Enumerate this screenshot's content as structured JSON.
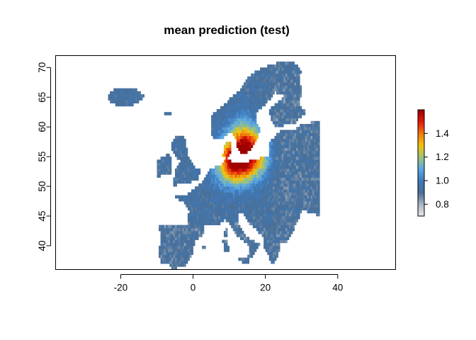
{
  "chart_data": {
    "type": "heatmap",
    "title": "mean prediction (test)",
    "xlabel": "",
    "ylabel": "",
    "xlim": [
      -38,
      56
    ],
    "ylim": [
      36,
      72
    ],
    "x_ticks": [
      -20,
      0,
      20,
      40
    ],
    "y_ticks": [
      40,
      45,
      50,
      55,
      60,
      65,
      70
    ],
    "x_tick_labels": [
      "-20",
      "0",
      "20",
      "40"
    ],
    "y_tick_labels": [
      "40",
      "45",
      "50",
      "55",
      "60",
      "65",
      "70"
    ],
    "grid": false,
    "legend": {
      "placement": "right",
      "range": [
        0.7,
        1.6
      ],
      "ticks": [
        0.8,
        1.0,
        1.2,
        1.4
      ],
      "tick_labels": [
        "0.8",
        "1.0",
        "1.2",
        "1.4"
      ],
      "colors": [
        "#e8e8e8",
        "#a9b6c4",
        "#4a6f96",
        "#3e78b8",
        "#5aa8e6",
        "#9fc37a",
        "#f2c40a",
        "#f07a10",
        "#e31a0a",
        "#9e0000"
      ]
    },
    "cell_size_deg": 1,
    "value_description": "regional mean prediction values over Europe; ~1.0 (blue) in most areas, 1.2–1.55 (yellow-red) across Germany, Poland, Denmark and southern Sweden",
    "hotspots": [
      {
        "region": "north-central Germany",
        "lon": 11,
        "lat": 54,
        "value": 1.55
      },
      {
        "region": "Poland / Denmark",
        "lon": 16,
        "lat": 55,
        "value": 1.45
      },
      {
        "region": "southern Sweden",
        "lon": 14,
        "lat": 58,
        "value": 1.3
      }
    ]
  }
}
